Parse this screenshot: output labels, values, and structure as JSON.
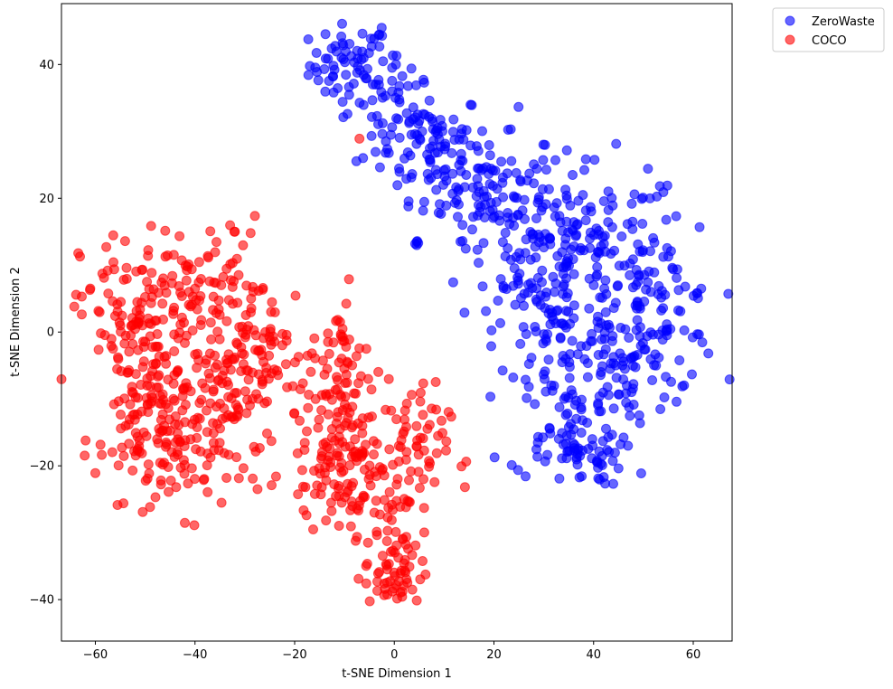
{
  "chart_data": {
    "type": "scatter",
    "title": "",
    "xlabel": "t-SNE Dimension 1",
    "ylabel": "t-SNE Dimension 2",
    "xlim": [
      -66.8,
      67.8
    ],
    "ylim": [
      -46.2,
      49.1
    ],
    "x_ticks": [
      -60,
      -40,
      -20,
      0,
      20,
      40,
      60
    ],
    "y_ticks": [
      -40,
      -20,
      0,
      20,
      40
    ],
    "x_tick_labels": [
      "−60",
      "−40",
      "−20",
      "0",
      "20",
      "40",
      "60"
    ],
    "y_tick_labels": [
      "−40",
      "−20",
      "0",
      "20",
      "40"
    ],
    "grid": false,
    "legend_position": "outside top-right",
    "series": [
      {
        "name": "ZeroWaste",
        "color": "#0000ff",
        "alpha": 0.6,
        "clusters": [
          {
            "cx": -9,
            "cy": 40,
            "sx": 4,
            "sy": 3,
            "n": 60
          },
          {
            "cx": 0,
            "cy": 33,
            "sx": 4,
            "sy": 5,
            "n": 60
          },
          {
            "cx": 8,
            "cy": 28,
            "sx": 5,
            "sy": 4,
            "n": 70
          },
          {
            "cx": 18,
            "cy": 21,
            "sx": 6,
            "sy": 4,
            "n": 80
          },
          {
            "cx": 28,
            "cy": 14,
            "sx": 7,
            "sy": 6,
            "n": 100
          },
          {
            "cx": 42,
            "cy": 11,
            "sx": 8,
            "sy": 7,
            "n": 120
          },
          {
            "cx": 53,
            "cy": 3,
            "sx": 6,
            "sy": 6,
            "n": 80
          },
          {
            "cx": 32,
            "cy": 0,
            "sx": 6,
            "sy": 6,
            "n": 70
          },
          {
            "cx": 45,
            "cy": -5,
            "sx": 6,
            "sy": 5,
            "n": 60
          },
          {
            "cx": 35,
            "cy": -14,
            "sx": 6,
            "sy": 4,
            "n": 70
          },
          {
            "cx": 38,
            "cy": -19,
            "sx": 4,
            "sy": 2,
            "n": 30
          }
        ],
        "extra_points": [
          [
            4.5,
            13.5
          ],
          [
            4.5,
            13.0
          ],
          [
            4.8,
            13.3
          ],
          [
            4.2,
            13.2
          ],
          [
            4.6,
            13.6
          ]
        ]
      },
      {
        "name": "COCO",
        "color": "#ff0000",
        "alpha": 0.6,
        "clusters": [
          {
            "cx": -53,
            "cy": 3,
            "sx": 5,
            "sy": 6,
            "n": 80
          },
          {
            "cx": -38,
            "cy": 5,
            "sx": 6,
            "sy": 6,
            "n": 90
          },
          {
            "cx": -28,
            "cy": -3,
            "sx": 7,
            "sy": 6,
            "n": 90
          },
          {
            "cx": -48,
            "cy": -8,
            "sx": 5,
            "sy": 6,
            "n": 80
          },
          {
            "cx": -50,
            "cy": -15,
            "sx": 5,
            "sy": 5,
            "n": 60
          },
          {
            "cx": -42,
            "cy": -19,
            "sx": 5,
            "sy": 4,
            "n": 50
          },
          {
            "cx": -33,
            "cy": -11,
            "sx": 5,
            "sy": 5,
            "n": 60
          },
          {
            "cx": -10,
            "cy": -5,
            "sx": 3,
            "sy": 5,
            "n": 50
          },
          {
            "cx": -14,
            "cy": -17,
            "sx": 4,
            "sy": 5,
            "n": 70
          },
          {
            "cx": -8,
            "cy": -19,
            "sx": 4,
            "sy": 5,
            "n": 60
          },
          {
            "cx": 3,
            "cy": -18,
            "sx": 4,
            "sy": 5,
            "n": 60
          },
          {
            "cx": 0,
            "cy": -36,
            "sx": 3,
            "sy": 3,
            "n": 60
          },
          {
            "cx": -3,
            "cy": -25,
            "sx": 4,
            "sy": 3,
            "n": 30
          }
        ],
        "extra_points": [
          [
            -7.0,
            28.9
          ]
        ]
      }
    ]
  }
}
